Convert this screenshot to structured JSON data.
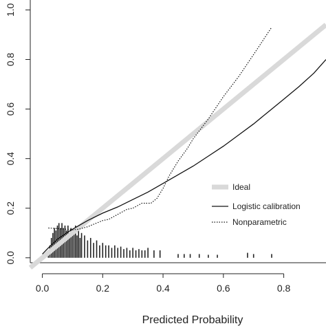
{
  "chart_data": {
    "type": "line",
    "xlabel": "Predicted Probability",
    "ylabel": "",
    "xlim": [
      -0.04,
      0.94
    ],
    "ylim": [
      -0.02,
      1.04
    ],
    "x_ticks": [
      0.0,
      0.2,
      0.4,
      0.6,
      0.8
    ],
    "x_tick_labels": [
      "0.0",
      "0.2",
      "0.4",
      "0.6",
      "0.8"
    ],
    "y_ticks": [
      0.0,
      0.2,
      0.4,
      0.6,
      0.8,
      1.0
    ],
    "y_tick_labels": [
      "0.0",
      "0.2",
      "0.4",
      "0.6",
      "0.8",
      "1.0"
    ],
    "legend_position": "bottom-right",
    "legend": [
      {
        "label": "Ideal",
        "style": "thick-gray"
      },
      {
        "label": "Logistic calibration",
        "style": "solid"
      },
      {
        "label": "Nonparametric",
        "style": "dotted"
      }
    ],
    "colors": {
      "ideal": "#d9d9d9",
      "line": "#111111",
      "axis": "#222222"
    },
    "series": [
      {
        "name": "Ideal",
        "x": [
          -0.04,
          0.94
        ],
        "y": [
          -0.04,
          0.94
        ]
      },
      {
        "name": "Logistic calibration",
        "x": [
          0.0,
          0.02,
          0.05,
          0.08,
          0.1,
          0.15,
          0.2,
          0.25,
          0.3,
          0.35,
          0.4,
          0.45,
          0.5,
          0.55,
          0.6,
          0.65,
          0.7,
          0.75,
          0.8,
          0.85,
          0.9,
          0.94
        ],
        "y": [
          0.015,
          0.04,
          0.075,
          0.1,
          0.115,
          0.15,
          0.18,
          0.205,
          0.235,
          0.265,
          0.3,
          0.335,
          0.37,
          0.41,
          0.45,
          0.495,
          0.54,
          0.59,
          0.64,
          0.69,
          0.745,
          0.8
        ]
      },
      {
        "name": "Nonparametric",
        "x": [
          0.02,
          0.05,
          0.08,
          0.1,
          0.12,
          0.15,
          0.18,
          0.2,
          0.22,
          0.25,
          0.28,
          0.3,
          0.33,
          0.36,
          0.38,
          0.4,
          0.42,
          0.45,
          0.48,
          0.5,
          0.55,
          0.6,
          0.65,
          0.7,
          0.76
        ],
        "y": [
          0.12,
          0.118,
          0.115,
          0.113,
          0.115,
          0.125,
          0.14,
          0.15,
          0.155,
          0.175,
          0.195,
          0.2,
          0.22,
          0.22,
          0.24,
          0.28,
          0.33,
          0.39,
          0.44,
          0.48,
          0.56,
          0.65,
          0.73,
          0.82,
          0.93
        ]
      }
    ],
    "distribution": {
      "x": [
        0.02,
        0.025,
        0.03,
        0.035,
        0.04,
        0.045,
        0.05,
        0.055,
        0.06,
        0.065,
        0.07,
        0.075,
        0.08,
        0.085,
        0.09,
        0.095,
        0.1,
        0.105,
        0.11,
        0.115,
        0.12,
        0.125,
        0.13,
        0.14,
        0.15,
        0.16,
        0.17,
        0.18,
        0.19,
        0.2,
        0.21,
        0.22,
        0.23,
        0.24,
        0.25,
        0.26,
        0.27,
        0.28,
        0.29,
        0.3,
        0.31,
        0.32,
        0.33,
        0.34,
        0.35,
        0.37,
        0.39,
        0.45,
        0.47,
        0.49,
        0.52,
        0.55,
        0.58,
        0.68,
        0.7,
        0.76
      ],
      "h": [
        0.02,
        0.05,
        0.08,
        0.1,
        0.12,
        0.11,
        0.13,
        0.14,
        0.12,
        0.14,
        0.12,
        0.13,
        0.11,
        0.13,
        0.1,
        0.12,
        0.11,
        0.1,
        0.13,
        0.09,
        0.11,
        0.08,
        0.1,
        0.09,
        0.07,
        0.08,
        0.06,
        0.07,
        0.05,
        0.06,
        0.05,
        0.05,
        0.04,
        0.05,
        0.04,
        0.045,
        0.035,
        0.04,
        0.03,
        0.04,
        0.03,
        0.035,
        0.03,
        0.03,
        0.04,
        0.03,
        0.03,
        0.015,
        0.015,
        0.015,
        0.015,
        0.012,
        0.012,
        0.02,
        0.015,
        0.015
      ]
    }
  }
}
